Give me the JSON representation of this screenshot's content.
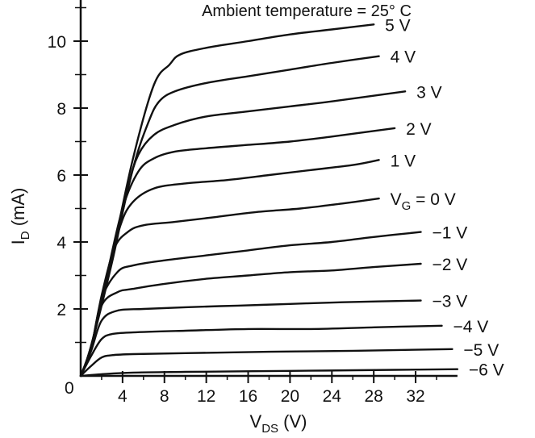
{
  "chart_data": {
    "type": "line",
    "title": "Ambient temperature = 25° C",
    "xlabel": {
      "main": "V",
      "sub": "DS",
      "unit": " (V)"
    },
    "ylabel": {
      "main": "I",
      "sub": "D",
      "unit": " (mA)"
    },
    "xlim": [
      0,
      36
    ],
    "ylim": [
      0,
      11
    ],
    "origin_label": "0",
    "x_ticks": [
      4,
      8,
      12,
      16,
      20,
      24,
      28,
      32
    ],
    "x_tick_labels": [
      "4",
      "8",
      "12",
      "16",
      "20",
      "24",
      "28",
      "32"
    ],
    "y_ticks": [
      2,
      4,
      6,
      8,
      10
    ],
    "y_tick_labels": [
      "2",
      "4",
      "6",
      "8",
      "10"
    ],
    "x_minor_ticks": [
      2,
      6,
      10,
      14,
      18,
      22,
      26,
      30,
      34
    ],
    "y_minor_ticks": [
      1,
      3,
      5,
      7,
      9
    ],
    "grid": false,
    "line_color": "#111111",
    "series": [
      {
        "name": "5 V",
        "x": [
          0,
          1,
          3,
          5,
          7,
          8.5,
          9.5,
          12,
          16,
          20,
          24,
          28
        ],
        "y": [
          0,
          0.9,
          3.6,
          6.5,
          8.7,
          9.3,
          9.6,
          9.8,
          10.0,
          10.2,
          10.35,
          10.5
        ]
      },
      {
        "name": "4 V",
        "x": [
          0,
          1,
          3,
          5,
          6.5,
          7.5,
          9,
          12,
          16,
          20,
          24,
          28.5
        ],
        "y": [
          0,
          0.9,
          3.5,
          6.2,
          7.6,
          8.2,
          8.5,
          8.75,
          8.95,
          9.15,
          9.35,
          9.55
        ]
      },
      {
        "name": "3 V",
        "x": [
          0,
          1,
          3,
          4.5,
          5.5,
          7,
          9,
          12,
          16,
          20,
          24,
          31
        ],
        "y": [
          0,
          0.9,
          3.4,
          5.6,
          6.6,
          7.2,
          7.5,
          7.75,
          7.9,
          8.05,
          8.2,
          8.5
        ]
      },
      {
        "name": "2 V",
        "x": [
          0,
          1,
          2.5,
          4,
          5.5,
          7,
          9,
          12,
          16,
          20,
          24,
          30
        ],
        "y": [
          0,
          0.85,
          3.0,
          5.0,
          6.1,
          6.5,
          6.7,
          6.8,
          6.9,
          7.0,
          7.15,
          7.4
        ]
      },
      {
        "name": "1 V",
        "x": [
          0,
          1,
          2.5,
          3.8,
          5,
          7,
          10,
          14,
          18,
          22,
          26,
          28.5
        ],
        "y": [
          0,
          0.85,
          2.9,
          4.5,
          5.2,
          5.6,
          5.75,
          5.85,
          6.0,
          6.15,
          6.3,
          6.45
        ]
      },
      {
        "name": "V_G = 0 V",
        "x": [
          0,
          1,
          2,
          3.2,
          4.5,
          6,
          9,
          13,
          17,
          21,
          25,
          28.5
        ],
        "y": [
          0,
          0.85,
          2.4,
          3.8,
          4.3,
          4.5,
          4.6,
          4.75,
          4.9,
          5.0,
          5.15,
          5.3
        ]
      },
      {
        "name": "−1 V",
        "x": [
          0,
          1,
          2,
          3.5,
          5,
          8,
          12,
          16,
          20,
          24,
          28,
          32.5
        ],
        "y": [
          0,
          0.85,
          2.3,
          3.1,
          3.3,
          3.45,
          3.6,
          3.75,
          3.9,
          4.0,
          4.15,
          4.3
        ]
      },
      {
        "name": "−2 V",
        "x": [
          0,
          1,
          2,
          3.5,
          5,
          8,
          12,
          16,
          20,
          24,
          28,
          32.5
        ],
        "y": [
          0,
          0.8,
          2.1,
          2.5,
          2.6,
          2.75,
          2.9,
          3.0,
          3.1,
          3.15,
          3.25,
          3.35
        ]
      },
      {
        "name": "−3 V",
        "x": [
          0,
          1,
          2,
          3.5,
          6,
          10,
          15,
          20,
          25,
          32.5
        ],
        "y": [
          0,
          0.75,
          1.65,
          1.95,
          2.0,
          2.05,
          2.1,
          2.15,
          2.2,
          2.25
        ]
      },
      {
        "name": "−4 V",
        "x": [
          0,
          1,
          2,
          3,
          5,
          10,
          16,
          22,
          28,
          34.5
        ],
        "y": [
          0,
          0.6,
          1.1,
          1.25,
          1.3,
          1.35,
          1.4,
          1.4,
          1.45,
          1.5
        ]
      },
      {
        "name": "−5 V",
        "x": [
          0,
          1,
          2,
          3,
          5,
          10,
          18,
          26,
          35.5
        ],
        "y": [
          0,
          0.3,
          0.55,
          0.62,
          0.65,
          0.68,
          0.72,
          0.75,
          0.8
        ]
      },
      {
        "name": "−6 V",
        "x": [
          0,
          2,
          5,
          10,
          20,
          30,
          36
        ],
        "y": [
          0,
          0.05,
          0.1,
          0.12,
          0.15,
          0.18,
          0.2
        ]
      }
    ],
    "curve_labels": [
      "5 V",
      "4 V",
      "3 V",
      "2 V",
      "1 V",
      "V_G = 0 V",
      "−1 V",
      "−2 V",
      "−3 V",
      "−4 V",
      "−5 V",
      "−6 V"
    ]
  }
}
